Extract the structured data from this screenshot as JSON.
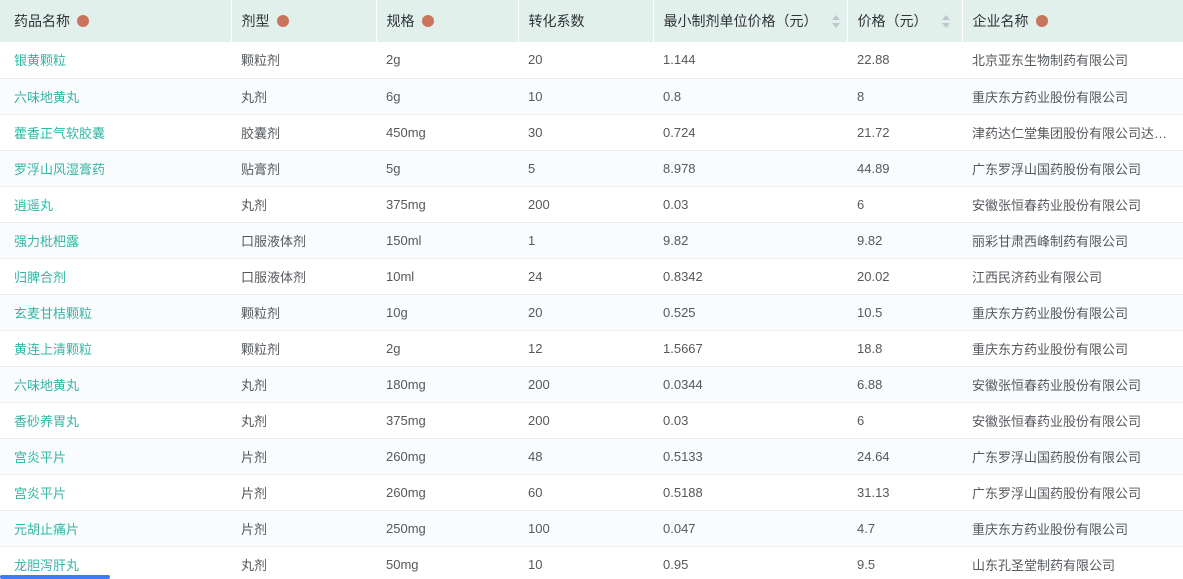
{
  "theme": {
    "header_bg": "#e2f0ec",
    "header_text": "#2f3236",
    "link_color": "#35b5a5",
    "body_text": "#55585c",
    "row_alt_bg": "#fafbfc",
    "row_border": "#ebeef0",
    "sort_caret": "#c0c4cc",
    "info_dot": "#c8755b",
    "scrollbar_thumb": "#3e7bfa"
  },
  "table": {
    "columns": [
      {
        "label": "药品名称",
        "icon": "info-dot",
        "sortable": false
      },
      {
        "label": "剂型",
        "icon": "info-dot",
        "sortable": false
      },
      {
        "label": "规格",
        "icon": "info-dot",
        "sortable": false
      },
      {
        "label": "转化系数",
        "sortable": false
      },
      {
        "label": "最小制剂单位价格（元）",
        "sortable": true
      },
      {
        "label": "价格（元）",
        "sortable": true
      },
      {
        "label": "企业名称",
        "icon": "info-dot",
        "sortable": false
      }
    ],
    "rows": [
      {
        "drug_name": "银黄颗粒",
        "dosage_form": "颗粒剂",
        "spec": "2g",
        "conversion_factor": "20",
        "min_unit_price": "1.144",
        "price": "22.88",
        "company": "北京亚东生物制药有限公司"
      },
      {
        "drug_name": "六味地黄丸",
        "dosage_form": "丸剂",
        "spec": "6g",
        "conversion_factor": "10",
        "min_unit_price": "0.8",
        "price": "8",
        "company": "重庆东方药业股份有限公司"
      },
      {
        "drug_name": "藿香正气软胶囊",
        "dosage_form": "胶囊剂",
        "spec": "450mg",
        "conversion_factor": "30",
        "min_unit_price": "0.724",
        "price": "21.72",
        "company": "津药达仁堂集团股份有限公司达仁..."
      },
      {
        "drug_name": "罗浮山风湿膏药",
        "dosage_form": "贴膏剂",
        "spec": "5g",
        "conversion_factor": "5",
        "min_unit_price": "8.978",
        "price": "44.89",
        "company": "广东罗浮山国药股份有限公司"
      },
      {
        "drug_name": "逍遥丸",
        "dosage_form": "丸剂",
        "spec": "375mg",
        "conversion_factor": "200",
        "min_unit_price": "0.03",
        "price": "6",
        "company": "安徽张恒春药业股份有限公司"
      },
      {
        "drug_name": "强力枇杷露",
        "dosage_form": "口服液体剂",
        "spec": "150ml",
        "conversion_factor": "1",
        "min_unit_price": "9.82",
        "price": "9.82",
        "company": "丽彩甘肃西峰制药有限公司"
      },
      {
        "drug_name": "归脾合剂",
        "dosage_form": "口服液体剂",
        "spec": "10ml",
        "conversion_factor": "24",
        "min_unit_price": "0.8342",
        "price": "20.02",
        "company": "江西民济药业有限公司"
      },
      {
        "drug_name": "玄麦甘桔颗粒",
        "dosage_form": "颗粒剂",
        "spec": "10g",
        "conversion_factor": "20",
        "min_unit_price": "0.525",
        "price": "10.5",
        "company": "重庆东方药业股份有限公司"
      },
      {
        "drug_name": "黄连上清颗粒",
        "dosage_form": "颗粒剂",
        "spec": "2g",
        "conversion_factor": "12",
        "min_unit_price": "1.5667",
        "price": "18.8",
        "company": "重庆东方药业股份有限公司"
      },
      {
        "drug_name": "六味地黄丸",
        "dosage_form": "丸剂",
        "spec": "180mg",
        "conversion_factor": "200",
        "min_unit_price": "0.0344",
        "price": "6.88",
        "company": "安徽张恒春药业股份有限公司"
      },
      {
        "drug_name": "香砂养胃丸",
        "dosage_form": "丸剂",
        "spec": "375mg",
        "conversion_factor": "200",
        "min_unit_price": "0.03",
        "price": "6",
        "company": "安徽张恒春药业股份有限公司"
      },
      {
        "drug_name": "宫炎平片",
        "dosage_form": "片剂",
        "spec": "260mg",
        "conversion_factor": "48",
        "min_unit_price": "0.5133",
        "price": "24.64",
        "company": "广东罗浮山国药股份有限公司"
      },
      {
        "drug_name": "宫炎平片",
        "dosage_form": "片剂",
        "spec": "260mg",
        "conversion_factor": "60",
        "min_unit_price": "0.5188",
        "price": "31.13",
        "company": "广东罗浮山国药股份有限公司"
      },
      {
        "drug_name": "元胡止痛片",
        "dosage_form": "片剂",
        "spec": "250mg",
        "conversion_factor": "100",
        "min_unit_price": "0.047",
        "price": "4.7",
        "company": "重庆东方药业股份有限公司"
      },
      {
        "drug_name": "龙胆泻肝丸",
        "dosage_form": "丸剂",
        "spec": "50mg",
        "conversion_factor": "10",
        "min_unit_price": "0.95",
        "price": "9.5",
        "company": "山东孔圣堂制药有限公司"
      }
    ]
  }
}
